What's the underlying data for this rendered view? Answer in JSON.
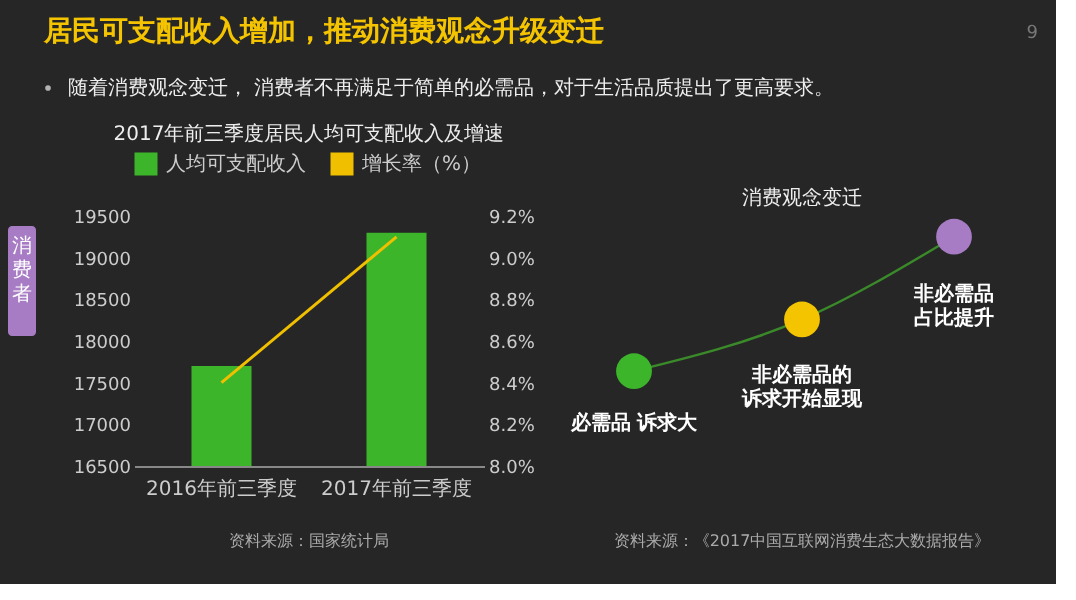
{
  "chart_data": [
    {
      "type": "other",
      "title": "居民可支配收入增加，推动消费观念升级变迁",
      "subtitle": "随着消费观念变迁， 消费者不再满足于简单的必需品，对于生活品质提出了更高要求。",
      "annotations": [
        "消费者",
        "9"
      ]
    },
    {
      "type": "bar",
      "title": "2017年前三季度居民人均可支配收入及增速",
      "categories": [
        "2016年前三季度",
        "2017年前三季度"
      ],
      "series": [
        {
          "name": "人均可支配收入",
          "color": "#3cb52a",
          "values": [
            17700,
            19300
          ]
        },
        {
          "name": "增长率（%）",
          "type": "line",
          "axis": "y2",
          "color": "#f0c000",
          "values": [
            8.4,
            9.1
          ]
        }
      ],
      "ylim": [
        16500,
        19500
      ],
      "yticks": [
        16500,
        17000,
        17500,
        18000,
        18500,
        19000,
        19500
      ],
      "y2lim": [
        8.0,
        9.2
      ],
      "y2ticks": [
        {
          "value": 8.0,
          "label": "8.0%"
        },
        {
          "value": 8.2,
          "label": "8.2%"
        },
        {
          "value": 8.4,
          "label": "8.4%"
        },
        {
          "value": 8.6,
          "label": "8.6%"
        },
        {
          "value": 8.8,
          "label": "8.8%"
        },
        {
          "value": 9.0,
          "label": "9.0%"
        },
        {
          "value": 9.2,
          "label": "9.2%"
        }
      ],
      "grid": false,
      "legend": "top",
      "annotations": [
        "资料来源：国家统计局"
      ]
    },
    {
      "type": "other",
      "title": "消费观念变迁",
      "annotations": [
        "必需品 诉求大",
        "非必需品的诉求开始显现",
        "非必需品占比提升",
        "资料来源：《2017中国互联网消费生态大数据报告》"
      ]
    }
  ]
}
